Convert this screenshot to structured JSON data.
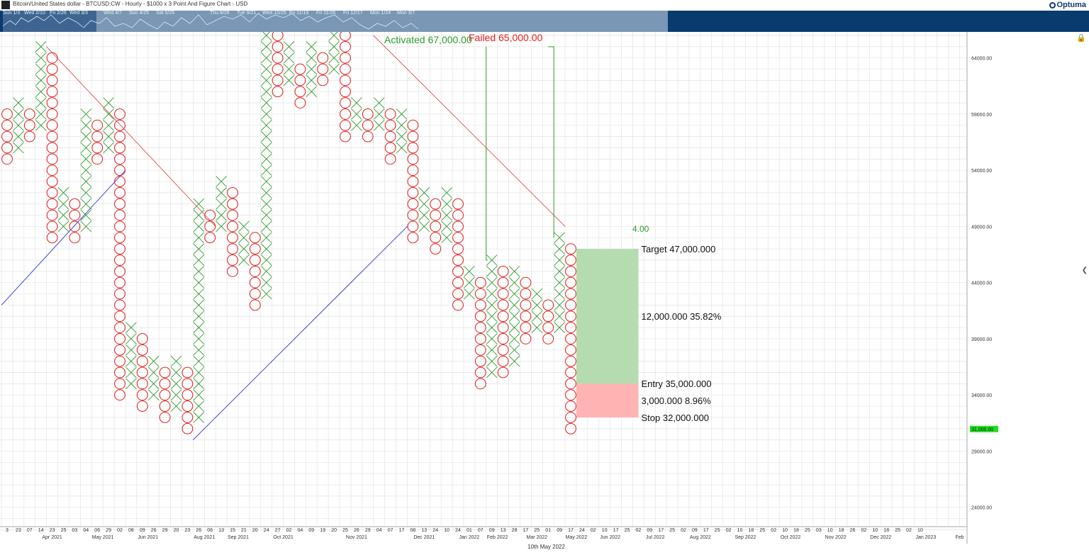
{
  "window": {
    "title": "Bitcoin/United States dollar - BTCUSD:CW - Hourly - $1000 x 3 Point And Figure Chart - USD",
    "logo": "Optuma"
  },
  "navigator": {
    "labels": [
      "Sun 1/3",
      "Wed 2/10",
      "Fri 2/26",
      "Wed 3/3",
      "Wed 4/7",
      "Sun 4/25",
      "Sat 5/29",
      "Thu 8/26",
      "Tue 9/21",
      "Wed 10/25",
      "Fri 11/19",
      "Fri 11/26",
      "Fri 12/17",
      "Mon 1/24",
      "Mon 3/7"
    ]
  },
  "footer": {
    "date_caption": "10th May 2022"
  },
  "colors": {
    "x_mark": "#2e9b2e",
    "o_mark": "#e02020",
    "downtrend": "#e05050",
    "uptrend": "#3030e0",
    "target_zone": "#b5dbb0",
    "stop_zone": "#ffb3b3",
    "grid": "#e3e3e3",
    "price_badge": "#22dd22"
  },
  "chart_data": {
    "type": "point_and_figure",
    "title": "Bitcoin/United States dollar - BTCUSD:CW - Hourly - $1000 x 3 Point And Figure Chart - USD",
    "box_size": 1000,
    "reversal": 3,
    "ylim": [
      21000,
      66000
    ],
    "y_ticks": [
      24000,
      29000,
      34000,
      39000,
      44000,
      49000,
      54000,
      59000,
      64000
    ],
    "y_tick_labels": [
      "24000.00",
      "29000.00",
      "34000.00",
      "39000.00",
      "44000.00",
      "49000.00",
      "54000.00",
      "59000.00",
      "64000.00"
    ],
    "last_price": 31000,
    "last_price_label": "31,000.00",
    "columns": [
      {
        "type": "O",
        "high": 59000,
        "low": 55000
      },
      {
        "type": "X",
        "low": 56000,
        "high": 60000
      },
      {
        "type": "O",
        "high": 59000,
        "low": 57000
      },
      {
        "type": "X",
        "low": 58000,
        "high": 65000
      },
      {
        "type": "O",
        "high": 64000,
        "low": 48000
      },
      {
        "type": "X",
        "low": 49000,
        "high": 52000
      },
      {
        "type": "O",
        "high": 51000,
        "low": 48000
      },
      {
        "type": "X",
        "low": 49000,
        "high": 59000
      },
      {
        "type": "O",
        "high": 58000,
        "low": 55000
      },
      {
        "type": "X",
        "low": 56000,
        "high": 60000
      },
      {
        "type": "O",
        "high": 59000,
        "low": 34000
      },
      {
        "type": "X",
        "low": 35000,
        "high": 40000
      },
      {
        "type": "O",
        "high": 39000,
        "low": 33000
      },
      {
        "type": "X",
        "low": 34000,
        "high": 37000
      },
      {
        "type": "O",
        "high": 36000,
        "low": 32000
      },
      {
        "type": "X",
        "low": 33000,
        "high": 37000
      },
      {
        "type": "O",
        "high": 36000,
        "low": 31000
      },
      {
        "type": "X",
        "low": 32000,
        "high": 51000
      },
      {
        "type": "O",
        "high": 50000,
        "low": 48000
      },
      {
        "type": "X",
        "low": 49000,
        "high": 53000
      },
      {
        "type": "O",
        "high": 52000,
        "low": 45000
      },
      {
        "type": "X",
        "low": 46000,
        "high": 49000
      },
      {
        "type": "O",
        "high": 48000,
        "low": 42000
      },
      {
        "type": "X",
        "low": 43000,
        "high": 66000
      },
      {
        "type": "O",
        "high": 66000,
        "low": 61000
      },
      {
        "type": "X",
        "low": 62000,
        "high": 65000
      },
      {
        "type": "O",
        "high": 63000,
        "low": 60000
      },
      {
        "type": "X",
        "low": 61000,
        "high": 65000
      },
      {
        "type": "O",
        "high": 64000,
        "low": 62000
      },
      {
        "type": "X",
        "low": 63000,
        "high": 66000
      },
      {
        "type": "O",
        "high": 66000,
        "low": 57000
      },
      {
        "type": "X",
        "low": 58000,
        "high": 60000
      },
      {
        "type": "O",
        "high": 59000,
        "low": 57000
      },
      {
        "type": "X",
        "low": 58000,
        "high": 60000
      },
      {
        "type": "O",
        "high": 59000,
        "low": 55000
      },
      {
        "type": "X",
        "low": 56000,
        "high": 59000
      },
      {
        "type": "O",
        "high": 58000,
        "low": 48000
      },
      {
        "type": "X",
        "low": 49000,
        "high": 52000
      },
      {
        "type": "O",
        "high": 51000,
        "low": 47000
      },
      {
        "type": "X",
        "low": 48000,
        "high": 52000
      },
      {
        "type": "O",
        "high": 51000,
        "low": 42000
      },
      {
        "type": "X",
        "low": 43000,
        "high": 45000
      },
      {
        "type": "O",
        "high": 44000,
        "low": 35000
      },
      {
        "type": "X",
        "low": 36000,
        "high": 46000
      },
      {
        "type": "O",
        "high": 45000,
        "low": 36000
      },
      {
        "type": "X",
        "low": 37000,
        "high": 45000
      },
      {
        "type": "O",
        "high": 44000,
        "low": 39000
      },
      {
        "type": "X",
        "low": 40000,
        "high": 43000
      },
      {
        "type": "O",
        "high": 42000,
        "low": 39000
      },
      {
        "type": "X",
        "low": 40000,
        "high": 48000
      },
      {
        "type": "O",
        "high": 47000,
        "low": 31000
      }
    ],
    "x_date_ticks": [
      "3",
      "23",
      "07",
      "14",
      "23",
      "25",
      "03",
      "04",
      "06",
      "29",
      "02",
      "08",
      "09",
      "26",
      "29",
      "20",
      "23",
      "26",
      "06",
      "13",
      "15",
      "21",
      "20",
      "24",
      "27",
      "02",
      "04",
      "09",
      "19",
      "20",
      "25",
      "26",
      "29",
      "04",
      "07",
      "17",
      "08",
      "13",
      "24",
      "10",
      "24",
      "01",
      "07",
      "09",
      "13",
      "28",
      "17",
      "25",
      "01",
      "09",
      "17",
      "24",
      "02",
      "10",
      "17",
      "25",
      "02",
      "09",
      "17",
      "25",
      "02",
      "09",
      "17",
      "25",
      "02",
      "10",
      "18",
      "25",
      "02",
      "10",
      "18",
      "25",
      "03",
      "10",
      "18",
      "26",
      "02",
      "10",
      "18",
      "25",
      "02",
      "10"
    ],
    "x_month_labels": [
      {
        "label": "Apr 2021",
        "col": 4
      },
      {
        "label": "May 2021",
        "col": 8.5
      },
      {
        "label": "Jun 2021",
        "col": 12.5
      },
      {
        "label": "Aug 2021",
        "col": 17.5
      },
      {
        "label": "Sep 2021",
        "col": 20.5
      },
      {
        "label": "Oct 2021",
        "col": 24.5
      },
      {
        "label": "Nov 2021",
        "col": 31
      },
      {
        "label": "Dec 2021",
        "col": 37
      },
      {
        "label": "Jan 2022",
        "col": 41
      },
      {
        "label": "Feb 2022",
        "col": 43.5
      },
      {
        "label": "Mar 2022",
        "col": 47
      },
      {
        "label": "May 2022",
        "col": 50.5
      },
      {
        "label": "Jun 2022",
        "col": 53.5
      },
      {
        "label": "Jul 2022",
        "col": 57.5
      },
      {
        "label": "Aug 2022",
        "col": 61.5
      },
      {
        "label": "Sep 2022",
        "col": 65.5
      },
      {
        "label": "Oct 2022",
        "col": 69.5
      },
      {
        "label": "Nov 2022",
        "col": 73.5
      },
      {
        "label": "Dec 2022",
        "col": 77.5
      },
      {
        "label": "Jan 2023",
        "col": 81.5
      },
      {
        "label": "Feb",
        "col": 84.5
      }
    ],
    "trendlines": [
      {
        "kind": "down",
        "from": {
          "col": 3.5,
          "price": 65000
        },
        "to": {
          "col": 18.5,
          "price": 49000
        }
      },
      {
        "kind": "up",
        "from": {
          "col": -0.5,
          "price": 42000
        },
        "to": {
          "col": 10.5,
          "price": 54000
        }
      },
      {
        "kind": "up",
        "from": {
          "col": 16.5,
          "price": 30000
        },
        "to": {
          "col": 35.5,
          "price": 49000
        }
      },
      {
        "kind": "down",
        "from": {
          "col": 32.5,
          "price": 66000
        },
        "to": {
          "col": 49.5,
          "price": 49000
        }
      }
    ],
    "signals": {
      "activated": {
        "text": "Activated 67,000.00",
        "col": 42.5,
        "top": 65000,
        "bottom": 46000
      },
      "failed": {
        "text": "Failed 65,000.00",
        "col": 48.5,
        "top": 65000,
        "bottom": 48000
      }
    },
    "trade_box": {
      "ratio_label": "4.00",
      "target_label": "Target   47,000.000",
      "reward_label": "12,000.000   35.82%",
      "entry_label": "Entry   35,000.000",
      "risk_label": "3,000.000   8.96%",
      "stop_label": "Stop   32,000.000",
      "target": 47000,
      "entry": 35000,
      "stop": 32000,
      "col_start": 50.5,
      "col_end": 55
    }
  }
}
